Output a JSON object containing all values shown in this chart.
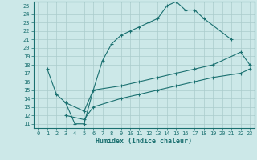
{
  "xlabel": "Humidex (Indice chaleur)",
  "ylabel": "",
  "xlim": [
    -0.5,
    23.5
  ],
  "ylim": [
    10.5,
    25.5
  ],
  "xticks": [
    0,
    1,
    2,
    3,
    4,
    5,
    6,
    7,
    8,
    9,
    10,
    11,
    12,
    13,
    14,
    15,
    16,
    17,
    18,
    19,
    20,
    21,
    22,
    23
  ],
  "yticks": [
    11,
    12,
    13,
    14,
    15,
    16,
    17,
    18,
    19,
    20,
    21,
    22,
    23,
    24,
    25
  ],
  "bg_color": "#cce8e8",
  "line_color": "#1a7070",
  "grid_color": "#aacccc",
  "line1_x": [
    1,
    2,
    3,
    4,
    5,
    6,
    7,
    8,
    9,
    10,
    11,
    12,
    13,
    14,
    15,
    16,
    17,
    18,
    21
  ],
  "line1_y": [
    17.5,
    14.5,
    13.5,
    11.0,
    11.0,
    15.0,
    18.5,
    20.5,
    21.5,
    22.0,
    22.5,
    23.0,
    23.5,
    25.0,
    25.5,
    24.5,
    24.5,
    23.5,
    21.0
  ],
  "line2_x": [
    3,
    5,
    6,
    9,
    11,
    13,
    15,
    17,
    19,
    22,
    23
  ],
  "line2_y": [
    13.5,
    12.5,
    15.0,
    15.5,
    16.0,
    16.5,
    17.0,
    17.5,
    18.0,
    19.5,
    18.0
  ],
  "line3_x": [
    3,
    5,
    6,
    9,
    11,
    13,
    15,
    17,
    19,
    22,
    23
  ],
  "line3_y": [
    12.0,
    11.5,
    13.0,
    14.0,
    14.5,
    15.0,
    15.5,
    16.0,
    16.5,
    17.0,
    17.5
  ]
}
